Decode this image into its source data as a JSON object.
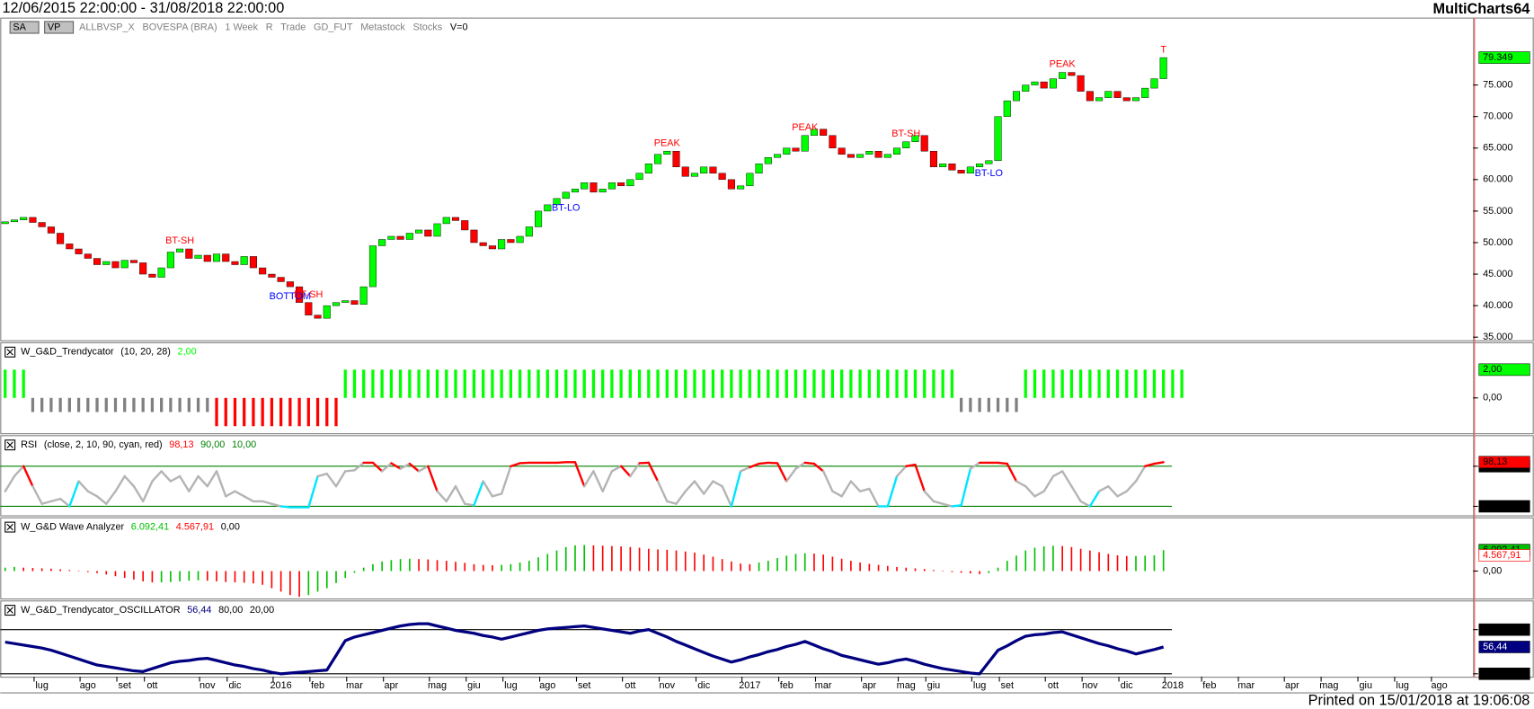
{
  "header": {
    "range": "12/06/2015 22:00:00 - 31/08/2018 22:00:00",
    "brand": "MultiCharts64"
  },
  "toolbar": [
    "SA",
    "VP",
    "ALLBVSP_X",
    "BOVESPA (BRA)",
    "1 Week",
    "R",
    "Trade",
    "GD_FUT",
    "Metastock",
    "Stocks",
    "V=0"
  ],
  "footer": "Printed on 15/01/2018 at 19:06:08",
  "time_axis": {
    "labels": [
      {
        "label": "lug",
        "index": 4
      },
      {
        "label": "ago",
        "index": 9
      },
      {
        "label": "set",
        "index": 13
      },
      {
        "label": "ott",
        "index": 16
      },
      {
        "label": "nov",
        "index": 22
      },
      {
        "label": "dic",
        "index": 25
      },
      {
        "label": "2016",
        "index": 30
      },
      {
        "label": "feb",
        "index": 34
      },
      {
        "label": "mar",
        "index": 38
      },
      {
        "label": "apr",
        "index": 42
      },
      {
        "label": "mag",
        "index": 47
      },
      {
        "label": "giu",
        "index": 51
      },
      {
        "label": "lug",
        "index": 55
      },
      {
        "label": "ago",
        "index": 59
      },
      {
        "label": "set",
        "index": 63
      },
      {
        "label": "ott",
        "index": 68
      },
      {
        "label": "nov",
        "index": 72
      },
      {
        "label": "dic",
        "index": 76
      },
      {
        "label": "2017",
        "index": 81
      },
      {
        "label": "feb",
        "index": 85
      },
      {
        "label": "mar",
        "index": 89
      },
      {
        "label": "apr",
        "index": 94
      },
      {
        "label": "mag",
        "index": 98
      },
      {
        "label": "giu",
        "index": 101
      },
      {
        "label": "lug",
        "index": 106
      },
      {
        "label": "set",
        "index": 109
      },
      {
        "label": "ott",
        "index": 114
      },
      {
        "label": "nov",
        "index": 118
      },
      {
        "label": "dic",
        "index": 122
      },
      {
        "label": "2018",
        "index": 127
      },
      {
        "label": "feb",
        "index": 131
      },
      {
        "label": "mar",
        "index": 135
      },
      {
        "label": "apr",
        "index": 140
      },
      {
        "label": "mag",
        "index": 144
      },
      {
        "label": "giu",
        "index": 148
      },
      {
        "label": "lug",
        "index": 152
      },
      {
        "label": "ago",
        "index": 156
      }
    ]
  },
  "chart_data": [
    {
      "type": "candlestick",
      "up_color": "#00ff00",
      "down_color": "#ff0000",
      "ylim": [
        34500,
        82900
      ],
      "yticks": [
        {
          "value": 35000,
          "label": "35.000"
        },
        {
          "value": 40000,
          "label": "40.000"
        },
        {
          "value": 45000,
          "label": "45.000"
        },
        {
          "value": 50000,
          "label": "50.000"
        },
        {
          "value": 55000,
          "label": "55.000"
        },
        {
          "value": 60000,
          "label": "60.000"
        },
        {
          "value": 65000,
          "label": "65.000"
        },
        {
          "value": 70000,
          "label": "70.000"
        },
        {
          "value": 75000,
          "label": "75.000"
        }
      ],
      "current": {
        "value": 79349,
        "label": "79.349",
        "color": "#00ff00"
      },
      "annotations": [
        {
          "text": "BT-SH",
          "index": 19,
          "color": "#ff0000"
        },
        {
          "text": "BOTTOM",
          "index": 31,
          "color": "#0000ff"
        },
        {
          "text": "BT-SH",
          "index": 33,
          "color": "#ff0000"
        },
        {
          "text": "BT-LO",
          "index": 61,
          "color": "#0000ff"
        },
        {
          "text": "PEAK",
          "index": 72,
          "color": "#ff0000"
        },
        {
          "text": "PEAK",
          "index": 87,
          "color": "#ff0000"
        },
        {
          "text": "BT-SH",
          "index": 98,
          "color": "#ff0000"
        },
        {
          "text": "BT-LO",
          "index": 107,
          "color": "#0000ff"
        },
        {
          "text": "PEAK",
          "index": 115,
          "color": "#ff0000"
        },
        {
          "text": "T",
          "index": 126,
          "color": "#ff0000"
        }
      ],
      "open": [
        53000,
        53300,
        53600,
        54000,
        53200,
        52500,
        51500,
        49800,
        49000,
        48200,
        47500,
        46500,
        47000,
        46000,
        47200,
        46800,
        45000,
        44500,
        46000,
        48500,
        49000,
        47500,
        48000,
        47000,
        48200,
        47000,
        46500,
        47800,
        46000,
        45000,
        44500,
        43800,
        43000,
        40500,
        38500,
        38000,
        40000,
        40500,
        40800,
        40200,
        43000,
        49500,
        50500,
        51000,
        50500,
        51500,
        52000,
        51000,
        53000,
        54000,
        53500,
        52000,
        50000,
        49500,
        49000,
        50500,
        50000,
        51000,
        52500,
        55000,
        56000,
        57000,
        58000,
        58500,
        59500,
        58000,
        58500,
        59500,
        59000,
        60000,
        61000,
        62500,
        64000,
        64500,
        62000,
        60500,
        61000,
        62000,
        61000,
        60000,
        58500,
        59000,
        61000,
        62500,
        63500,
        64000,
        65000,
        64500,
        67000,
        68000,
        67000,
        65000,
        64000,
        63500,
        64000,
        64500,
        63500,
        64000,
        65000,
        66000,
        67000,
        64500,
        62000,
        62500,
        61500,
        61000,
        62000,
        62500,
        63000,
        70000,
        72500,
        74000,
        75000,
        75500,
        74500,
        76000,
        77000,
        76500,
        74000,
        72500,
        73000,
        74000,
        73000,
        72500,
        73000,
        74500,
        76000
      ],
      "close": [
        53300,
        53600,
        54000,
        53200,
        52500,
        51500,
        49800,
        49000,
        48200,
        47500,
        46500,
        47000,
        46000,
        47200,
        46800,
        45000,
        44500,
        46000,
        48500,
        49000,
        47500,
        48000,
        47000,
        48200,
        47000,
        46500,
        47800,
        46000,
        45000,
        44500,
        43800,
        43000,
        40500,
        38500,
        38000,
        40000,
        40500,
        40800,
        40200,
        43000,
        49500,
        50500,
        51000,
        50500,
        51500,
        52000,
        51000,
        53000,
        54000,
        53500,
        52000,
        50000,
        49500,
        49000,
        50500,
        50000,
        51000,
        52500,
        55000,
        56000,
        57000,
        58000,
        58500,
        59500,
        58000,
        58500,
        59500,
        59000,
        60000,
        61000,
        62500,
        64000,
        64500,
        62000,
        60500,
        61000,
        62000,
        61000,
        60000,
        58500,
        59000,
        61000,
        62500,
        63500,
        64000,
        65000,
        64500,
        67000,
        68000,
        67000,
        65000,
        64000,
        63500,
        64000,
        64500,
        63500,
        64000,
        65000,
        66000,
        67000,
        64500,
        62000,
        62500,
        61500,
        61000,
        62000,
        62500,
        63000,
        70000,
        72500,
        74000,
        75000,
        75500,
        74500,
        76000,
        77000,
        76500,
        74000,
        72500,
        73000,
        74000,
        73000,
        72500,
        73000,
        74500,
        76000,
        79349
      ]
    },
    {
      "type": "bar",
      "name": "W_G&D_Trendycator",
      "params": "(10, 20, 28)",
      "ylim": [
        -2.5,
        3.8
      ],
      "yticks": [
        {
          "value": 0,
          "label": "0,00"
        }
      ],
      "current": {
        "value": 2,
        "label": "2,00",
        "color": "#00ff00"
      },
      "colors": {
        "2": "#00ff00",
        "-1": "#808080",
        "-2": "#ff0000"
      },
      "values": [
        2,
        2,
        2,
        -1,
        -1,
        -1,
        -1,
        -1,
        -1,
        -1,
        -1,
        -1,
        -1,
        -1,
        -1,
        -1,
        -1,
        -1,
        -1,
        -1,
        -1,
        -1,
        -1,
        -2,
        -2,
        -2,
        -2,
        -2,
        -2,
        -2,
        -2,
        -2,
        -2,
        -2,
        -2,
        -2,
        -2,
        2,
        2,
        2,
        2,
        2,
        2,
        2,
        2,
        2,
        2,
        2,
        2,
        2,
        2,
        2,
        2,
        2,
        2,
        2,
        2,
        2,
        2,
        2,
        2,
        2,
        2,
        2,
        2,
        2,
        2,
        2,
        2,
        2,
        2,
        2,
        2,
        2,
        2,
        2,
        2,
        2,
        2,
        2,
        2,
        2,
        2,
        2,
        2,
        2,
        2,
        2,
        2,
        2,
        2,
        2,
        2,
        2,
        2,
        2,
        2,
        2,
        2,
        2,
        2,
        2,
        2,
        2,
        -1,
        -1,
        -1,
        -1,
        -1,
        -1,
        -1,
        2,
        2,
        2,
        2,
        2,
        2,
        2,
        2,
        2,
        2,
        2,
        2,
        2,
        2,
        2,
        2,
        2,
        2
      ]
    },
    {
      "type": "line",
      "name": "RSI",
      "params": "(close, 2, 10, 90, cyan, red)",
      "ylim": [
        -8,
        148
      ],
      "yticks": [
        {
          "value": 90,
          "label": "90,00"
        },
        {
          "value": 10,
          "label": "10,00"
        }
      ],
      "grid_color": "#008000",
      "line_color": "#b4b4b4",
      "high_color": "#ff0000",
      "low_color": "#00e5ff",
      "current": {
        "value": 98.13,
        "label": "98,13",
        "color": "#ff0000"
      },
      "level_color": "#008000",
      "values": [
        40,
        70,
        90,
        50,
        15,
        20,
        25,
        10,
        60,
        40,
        30,
        15,
        40,
        70,
        50,
        20,
        60,
        80,
        60,
        70,
        40,
        70,
        50,
        80,
        30,
        40,
        30,
        20,
        20,
        15,
        10,
        8,
        8,
        8,
        70,
        75,
        50,
        80,
        82,
        97,
        97,
        80,
        96,
        85,
        95,
        80,
        90,
        40,
        20,
        50,
        15,
        12,
        60,
        30,
        35,
        90,
        96,
        97,
        97,
        97,
        97,
        98,
        98,
        50,
        80,
        40,
        80,
        90,
        70,
        96,
        97,
        60,
        20,
        15,
        40,
        60,
        35,
        60,
        50,
        10,
        80,
        88,
        95,
        97,
        96,
        60,
        85,
        97,
        95,
        80,
        40,
        30,
        60,
        40,
        45,
        10,
        10,
        70,
        90,
        93,
        40,
        20,
        15,
        10,
        12,
        85,
        97,
        97,
        97,
        95,
        60,
        50,
        30,
        40,
        70,
        80,
        50,
        20,
        10,
        40,
        50,
        30,
        40,
        60,
        90,
        95,
        98.13
      ]
    },
    {
      "type": "bar",
      "name": "W_G&D Wave Analyzer",
      "ylim": [
        -8000,
        15100
      ],
      "yticks": [
        {
          "value": 0,
          "label": "0,00"
        }
      ],
      "up_color": "#00c000",
      "down_color": "#ff0000",
      "current_values": [
        {
          "value": 6092.41,
          "label": "6.092,41",
          "color": "#00c000"
        },
        {
          "value": 4567.91,
          "label": "4.567,91",
          "color": "#ff0000"
        }
      ],
      "values": [
        1000,
        1200,
        1000,
        900,
        800,
        700,
        500,
        300,
        100,
        -300,
        -600,
        -1000,
        -1500,
        -2000,
        -2500,
        -3000,
        -3300,
        -3300,
        -3200,
        -3000,
        -2800,
        -2700,
        -2800,
        -3000,
        -3200,
        -3300,
        -3400,
        -3600,
        -4000,
        -5000,
        -6000,
        -7000,
        -7500,
        -7000,
        -6000,
        -5000,
        -3500,
        -2000,
        -500,
        1000,
        2000,
        2800,
        3200,
        3500,
        3600,
        3500,
        3400,
        3200,
        3000,
        2700,
        2400,
        2000,
        1800,
        1700,
        1800,
        2000,
        2500,
        3000,
        4000,
        5000,
        6000,
        7000,
        7500,
        7600,
        7500,
        7400,
        7300,
        7200,
        7000,
        6800,
        6500,
        6300,
        6200,
        6000,
        5700,
        5400,
        4800,
        4200,
        3500,
        2800,
        2200,
        2000,
        2500,
        3000,
        3800,
        4500,
        5000,
        5200,
        5100,
        4800,
        4200,
        3600,
        3000,
        2500,
        2100,
        1800,
        1500,
        1200,
        1000,
        800,
        600,
        300,
        0,
        -300,
        -500,
        -700,
        -900,
        -600,
        1000,
        3000,
        4500,
        6000,
        6800,
        7200,
        7400,
        7300,
        7000,
        6500,
        6000,
        5500,
        5000,
        4600,
        4400,
        4400,
        4500,
        4600,
        6092.41
      ]
    },
    {
      "type": "line",
      "name": "W_G&D_Trendycator_OSCILLATOR",
      "ylim": [
        16,
        117
      ],
      "yticks": [
        {
          "value": 80,
          "label": "80,00"
        },
        {
          "value": 20,
          "label": "20,00"
        }
      ],
      "grid_color": "#000000",
      "line_color": "#000080",
      "level_color": "#000000",
      "current": {
        "value": 56.44,
        "label": "56,44",
        "color": "#000080"
      },
      "values": [
        63,
        61,
        59,
        57,
        55,
        52,
        48,
        44,
        40,
        36,
        32,
        30,
        28,
        26,
        24,
        23,
        27,
        31,
        35,
        37,
        38,
        40,
        41,
        38,
        35,
        32,
        30,
        27,
        25,
        22,
        20,
        21,
        22,
        23,
        24,
        25,
        45,
        65,
        70,
        73,
        76,
        79,
        82,
        85,
        87,
        88,
        88,
        85,
        82,
        79,
        77,
        75,
        72,
        70,
        67,
        70,
        73,
        76,
        79,
        81,
        82,
        83,
        84,
        85,
        83,
        81,
        79,
        77,
        75,
        78,
        80,
        75,
        70,
        64,
        59,
        54,
        49,
        44,
        40,
        36,
        39,
        43,
        46,
        50,
        53,
        57,
        60,
        64,
        59,
        54,
        50,
        45,
        42,
        39,
        36,
        33,
        35,
        38,
        40,
        37,
        33,
        30,
        27,
        25,
        23,
        21,
        20,
        36,
        52,
        58,
        65,
        71,
        73,
        74,
        76,
        77,
        73,
        69,
        65,
        61,
        58,
        54,
        51,
        47,
        50,
        53,
        56.44
      ]
    }
  ]
}
